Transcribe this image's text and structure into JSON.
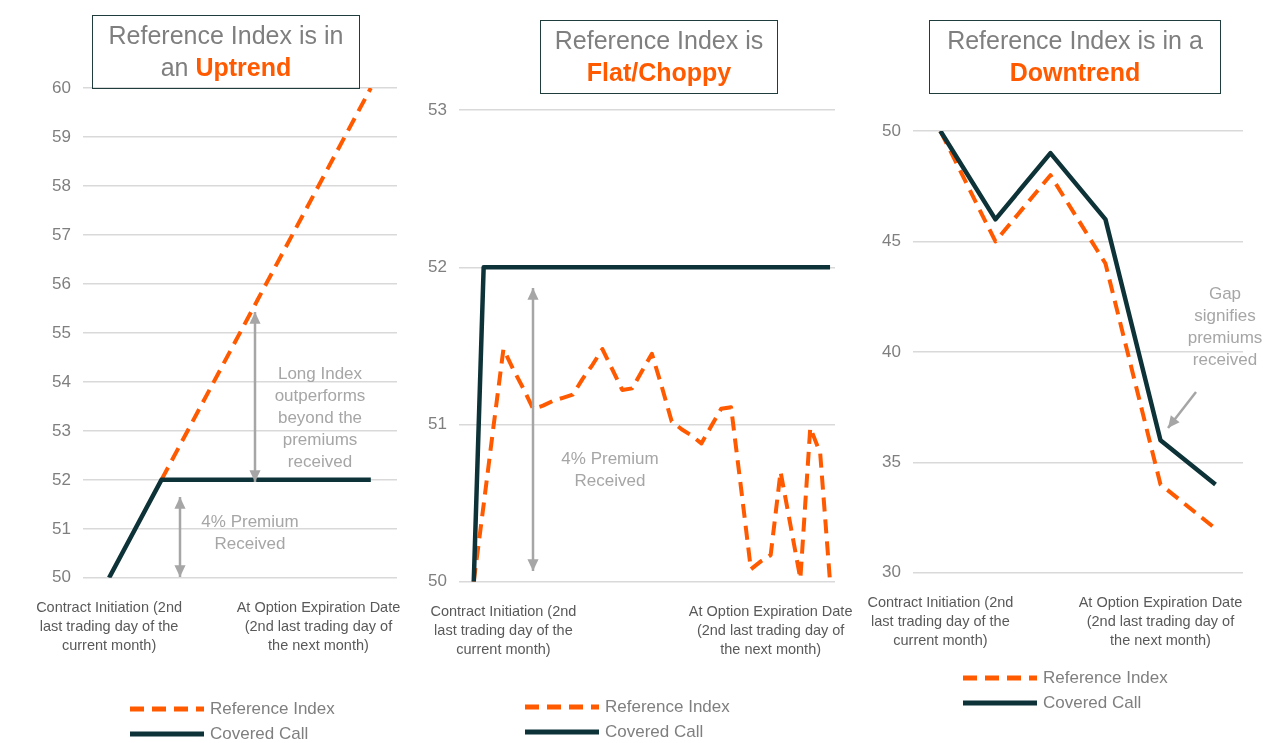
{
  "chart_data": [
    {
      "type": "line",
      "title": "Reference Index is in an",
      "subtitle": "Uptrend",
      "categories": [
        "Contract Initiation (2nd last trading day of the current month)",
        null,
        null,
        null,
        "At Option Expiration Date (2nd last trading day of the next month)",
        null
      ],
      "ylim": [
        50,
        60
      ],
      "yticks": [
        50,
        51,
        52,
        53,
        54,
        55,
        56,
        57,
        58,
        59,
        60
      ],
      "grid": "y",
      "legend": "bottom",
      "marker": "none",
      "series": [
        {
          "name": "Reference Index",
          "color": "#ff5a00",
          "line_style": "dashed",
          "values": [
            null,
            52,
            54,
            56,
            58,
            60
          ]
        },
        {
          "name": "Covered Call",
          "color": "#0d3338",
          "line_style": "solid",
          "values": [
            50,
            52,
            52,
            52,
            52,
            52
          ]
        }
      ],
      "annotations": [
        "4% Premium Received",
        "Long Index outperforms beyond the premiums received"
      ]
    },
    {
      "type": "line",
      "title": "Reference Index is",
      "subtitle": "Flat/Choppy",
      "categories": [
        null,
        null,
        null,
        null,
        "Contract Initiation (2nd last trading day of the current month)",
        null,
        null,
        null,
        null,
        null,
        null,
        null,
        null,
        null,
        null,
        null,
        null,
        null,
        null,
        null,
        null,
        null,
        null,
        null,
        null,
        null,
        null,
        null,
        null,
        null,
        null,
        "At Option Expiration Date (2nd last trading day of the next month)",
        null,
        null,
        null,
        null,
        null,
        null
      ],
      "ylim": [
        50,
        53
      ],
      "yticks": [
        50,
        51,
        52,
        53
      ],
      "grid": "y",
      "legend": "bottom",
      "marker": "none",
      "series": [
        {
          "name": "Reference Index",
          "color": "#ff5a00",
          "line_style": "dashed",
          "values": [
            null,
            50,
            50.49,
            50.99,
            51.48,
            51.35,
            51.23,
            51.1,
            51.12,
            51.15,
            51.17,
            51.19,
            51.29,
            51.38,
            51.48,
            51.35,
            51.22,
            51.23,
            51.34,
            51.45,
            51.24,
            51.02,
            50.97,
            50.93,
            50.88,
            50.99,
            51.1,
            51.11,
            50.6,
            50.08,
            50.13,
            50.17,
            50.7,
            50.36,
            50.02,
            50.98,
            50.82,
            50
          ]
        },
        {
          "name": "Covered Call",
          "color": "#0d3338",
          "line_style": "solid",
          "values": [
            null,
            50,
            52,
            52,
            52,
            52,
            52,
            52,
            52,
            52,
            52,
            52,
            52,
            52,
            52,
            52,
            52,
            52,
            52,
            52,
            52,
            52,
            52,
            52,
            52,
            52,
            52,
            52,
            52,
            52,
            52,
            52,
            52,
            52,
            52,
            52,
            52,
            52
          ]
        }
      ],
      "annotations": [
        "4% Premium Received"
      ]
    },
    {
      "type": "line",
      "title": "Reference Index is in a",
      "subtitle": "Downtrend",
      "categories": [
        "Contract Initiation (2nd last trading day of the current month)",
        null,
        null,
        null,
        "At Option Expiration Date (2nd last trading day of the next month)",
        null
      ],
      "ylim": [
        30,
        50
      ],
      "yticks": [
        30,
        35,
        40,
        45,
        50
      ],
      "grid": "y",
      "legend": "bottom",
      "marker": "none",
      "series": [
        {
          "name": "Reference Index",
          "color": "#ff5a00",
          "line_style": "dashed",
          "values": [
            50,
            45,
            48,
            44,
            34,
            32
          ]
        },
        {
          "name": "Covered Call",
          "color": "#0d3338",
          "line_style": "solid",
          "values": [
            50,
            46,
            49,
            46,
            36,
            34
          ]
        }
      ],
      "annotations": [
        "Gap signifies premiums received"
      ]
    }
  ]
}
